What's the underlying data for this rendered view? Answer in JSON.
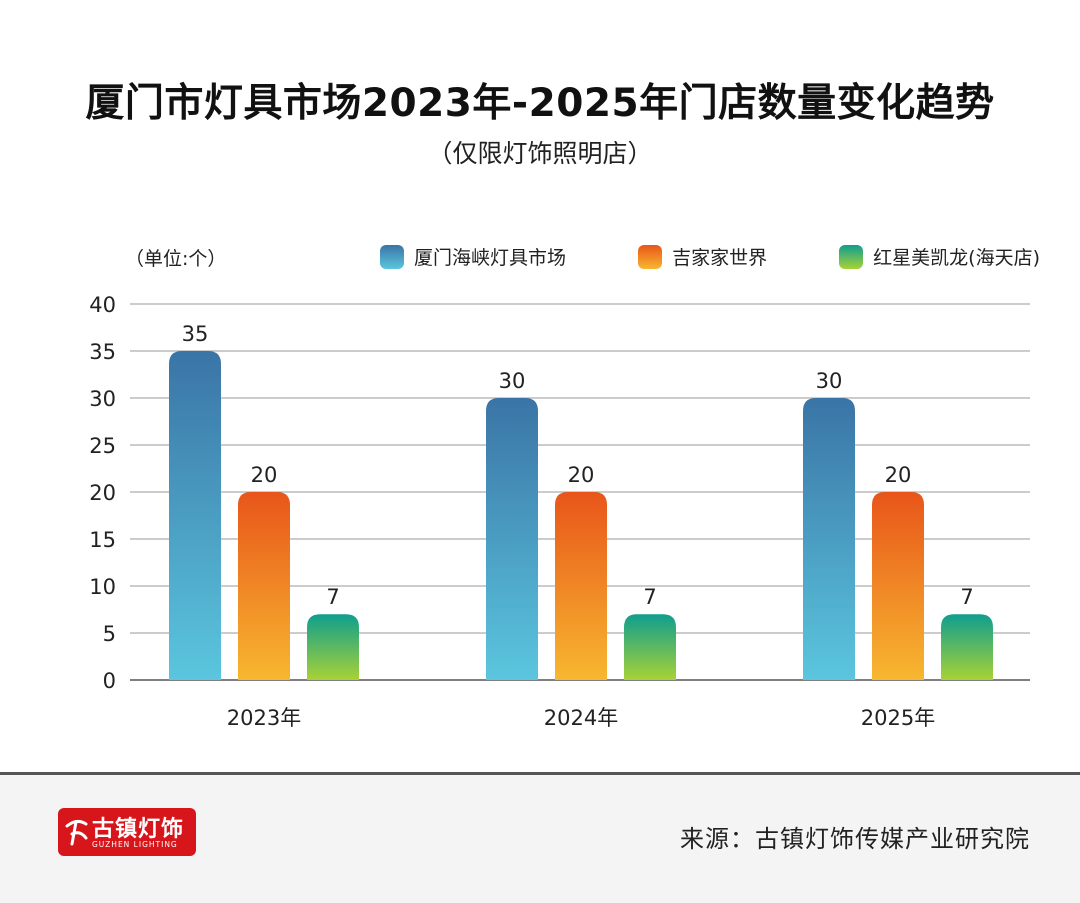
{
  "title": "厦门市灯具市场2023年-2025年门店数量变化趋势",
  "subtitle": "（仅限灯饰照明店）",
  "unit_label": "（单位:个）",
  "colors": {
    "series_top": [
      "#3a74a6",
      "#e8551a",
      "#0f9e8e"
    ],
    "series_bottom": [
      "#5bc6de",
      "#f7b730",
      "#a8d236"
    ],
    "grid": "#9a9a9a"
  },
  "chart_data": {
    "type": "bar",
    "title": "厦门市灯具市场2023年-2025年门店数量变化趋势",
    "subtitle": "（仅限灯饰照明店）",
    "categories": [
      "2023年",
      "2024年",
      "2025年"
    ],
    "series": [
      {
        "name": "厦门海峡灯具市场",
        "values": [
          35,
          30,
          30
        ]
      },
      {
        "name": "吉家家世界",
        "values": [
          20,
          20,
          20
        ]
      },
      {
        "name": "红星美凯龙(海天店)",
        "values": [
          7,
          7,
          7
        ]
      }
    ],
    "ylim": [
      0,
      40
    ],
    "yticks": [
      0,
      5,
      10,
      15,
      20,
      25,
      30,
      35,
      40
    ],
    "xlabel": "",
    "ylabel": "（单位:个）",
    "grid": true,
    "legend_position": "top-right"
  },
  "footer": {
    "logo_text": "古镇灯饰",
    "logo_subtext": "GUZHEN LIGHTING",
    "source": "来源：古镇灯饰传媒产业研究院"
  }
}
